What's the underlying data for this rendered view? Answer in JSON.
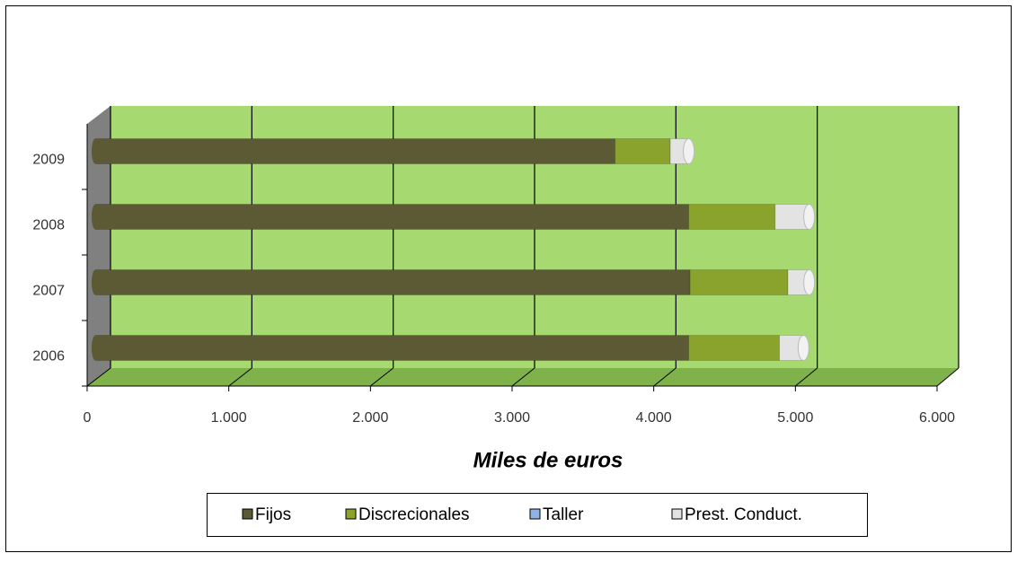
{
  "chart_data": {
    "type": "bar3d",
    "orientation": "horizontal",
    "stacked": true,
    "categories": [
      "2006",
      "2007",
      "2008",
      "2009"
    ],
    "series": [
      {
        "name": "Fijos",
        "color": "#5b5a34",
        "values": [
          4190,
          4200,
          4190,
          3670
        ]
      },
      {
        "name": "Discrecionales",
        "color": "#8aa32c",
        "values": [
          640,
          690,
          610,
          390
        ]
      },
      {
        "name": "Taller",
        "color": "#8db4e2",
        "values": [
          0,
          0,
          0,
          0
        ]
      },
      {
        "name": "Prest. Conduct.",
        "color": "#e3e3e3",
        "values": [
          170,
          150,
          240,
          130
        ]
      }
    ],
    "xlabel": "Miles de euros",
    "xlim": [
      0,
      6000
    ],
    "xticks": [
      0,
      {
        "value": 1000,
        "label": "1.000"
      },
      {
        "value": 2000,
        "label": "2.000"
      },
      {
        "value": 3000,
        "label": "3.000"
      },
      {
        "value": 4000,
        "label": "4.000"
      },
      {
        "value": 5000,
        "label": "5.000"
      },
      {
        "value": 6000,
        "label": "6.000"
      }
    ],
    "grid": true,
    "legend": "bottom"
  }
}
